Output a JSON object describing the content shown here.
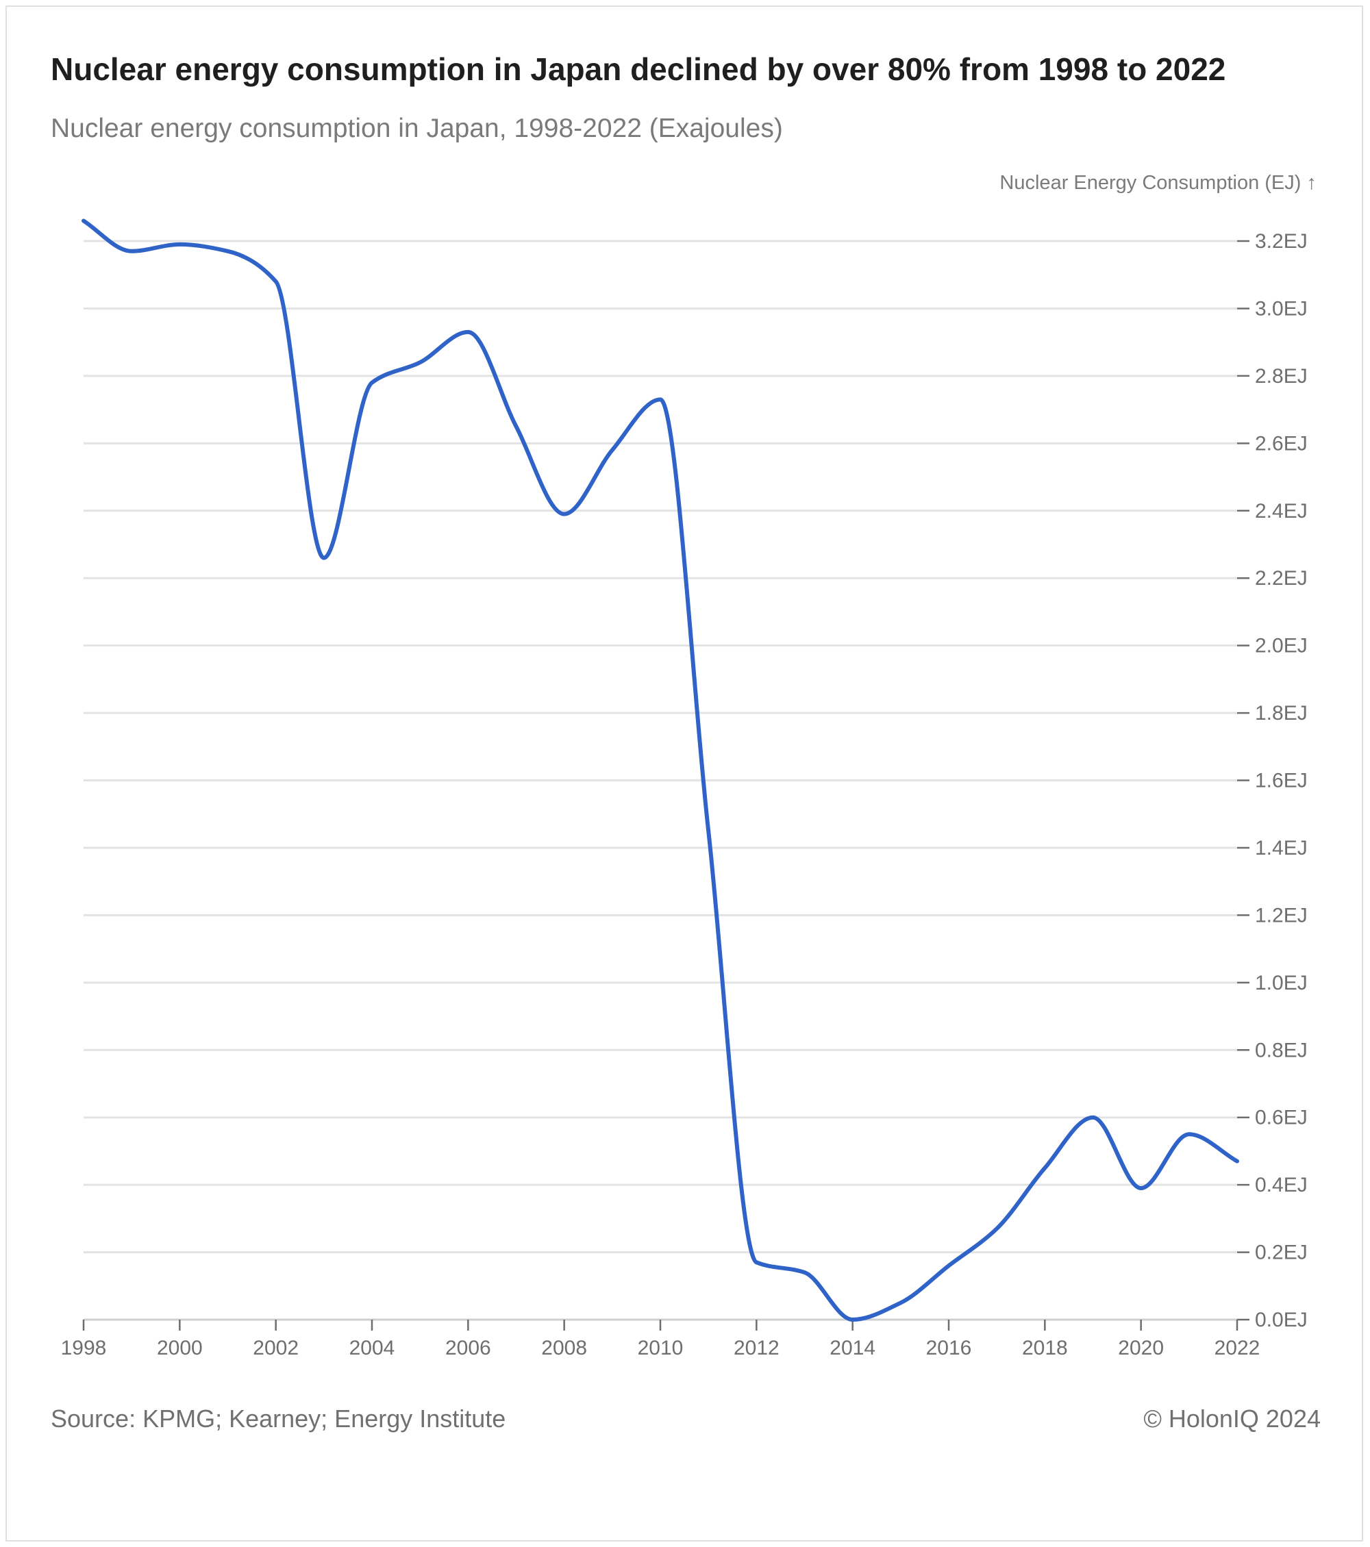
{
  "title": "Nuclear energy consumption in Japan declined by over 80% from 1998 to 2022",
  "subtitle": "Nuclear energy consumption in Japan, 1998-2022 (Exajoules)",
  "source": "Source: KPMG; Kearney; Energy Institute",
  "credit": "© HolonIQ 2024",
  "colors": {
    "line": "#2f63c8",
    "grid": "#e3e3e3",
    "axis_text": "#6e6e6e",
    "axis_line": "#cfcfcf"
  },
  "chart_data": {
    "type": "line",
    "title": "Nuclear energy consumption in Japan declined by over 80% from 1998 to 2022",
    "subtitle": "Nuclear energy consumption in Japan, 1998-2022 (Exajoules)",
    "xlabel": "",
    "ylabel": "Nuclear Energy Consumption (EJ) ↑",
    "y_unit_suffix": "EJ",
    "xlim": [
      1998,
      2022
    ],
    "ylim": [
      0,
      3.2
    ],
    "y_ticks": [
      0.0,
      0.2,
      0.4,
      0.6,
      0.8,
      1.0,
      1.2,
      1.4,
      1.6,
      1.8,
      2.0,
      2.2,
      2.4,
      2.6,
      2.8,
      3.0,
      3.2
    ],
    "y_tick_labels": [
      "0.0EJ",
      "0.2EJ",
      "0.4EJ",
      "0.6EJ",
      "0.8EJ",
      "1.0EJ",
      "1.2EJ",
      "1.4EJ",
      "1.6EJ",
      "1.8EJ",
      "2.0EJ",
      "2.2EJ",
      "2.4EJ",
      "2.6EJ",
      "2.8EJ",
      "3.0EJ",
      "3.2EJ"
    ],
    "x_ticks": [
      "1998",
      "2000",
      "2002",
      "2004",
      "2006",
      "2008",
      "2010",
      "2012",
      "2014",
      "2016",
      "2018",
      "2020",
      "2022"
    ],
    "grid": true,
    "y_axis_position": "right",
    "series": [
      {
        "x": [
          1998,
          1999,
          2000,
          2001,
          2002,
          2003,
          2004,
          2005,
          2006,
          2007,
          2008,
          2009,
          2010,
          2011,
          2012,
          2013,
          2014,
          2015,
          2016,
          2017,
          2018,
          2019,
          2020,
          2021,
          2022
        ],
        "values": [
          3.26,
          3.17,
          3.19,
          3.17,
          3.08,
          2.26,
          2.78,
          2.84,
          2.93,
          2.65,
          2.39,
          2.58,
          2.73,
          1.45,
          0.17,
          0.14,
          0.0,
          0.05,
          0.16,
          0.27,
          0.45,
          0.6,
          0.39,
          0.55,
          0.47
        ]
      }
    ]
  }
}
